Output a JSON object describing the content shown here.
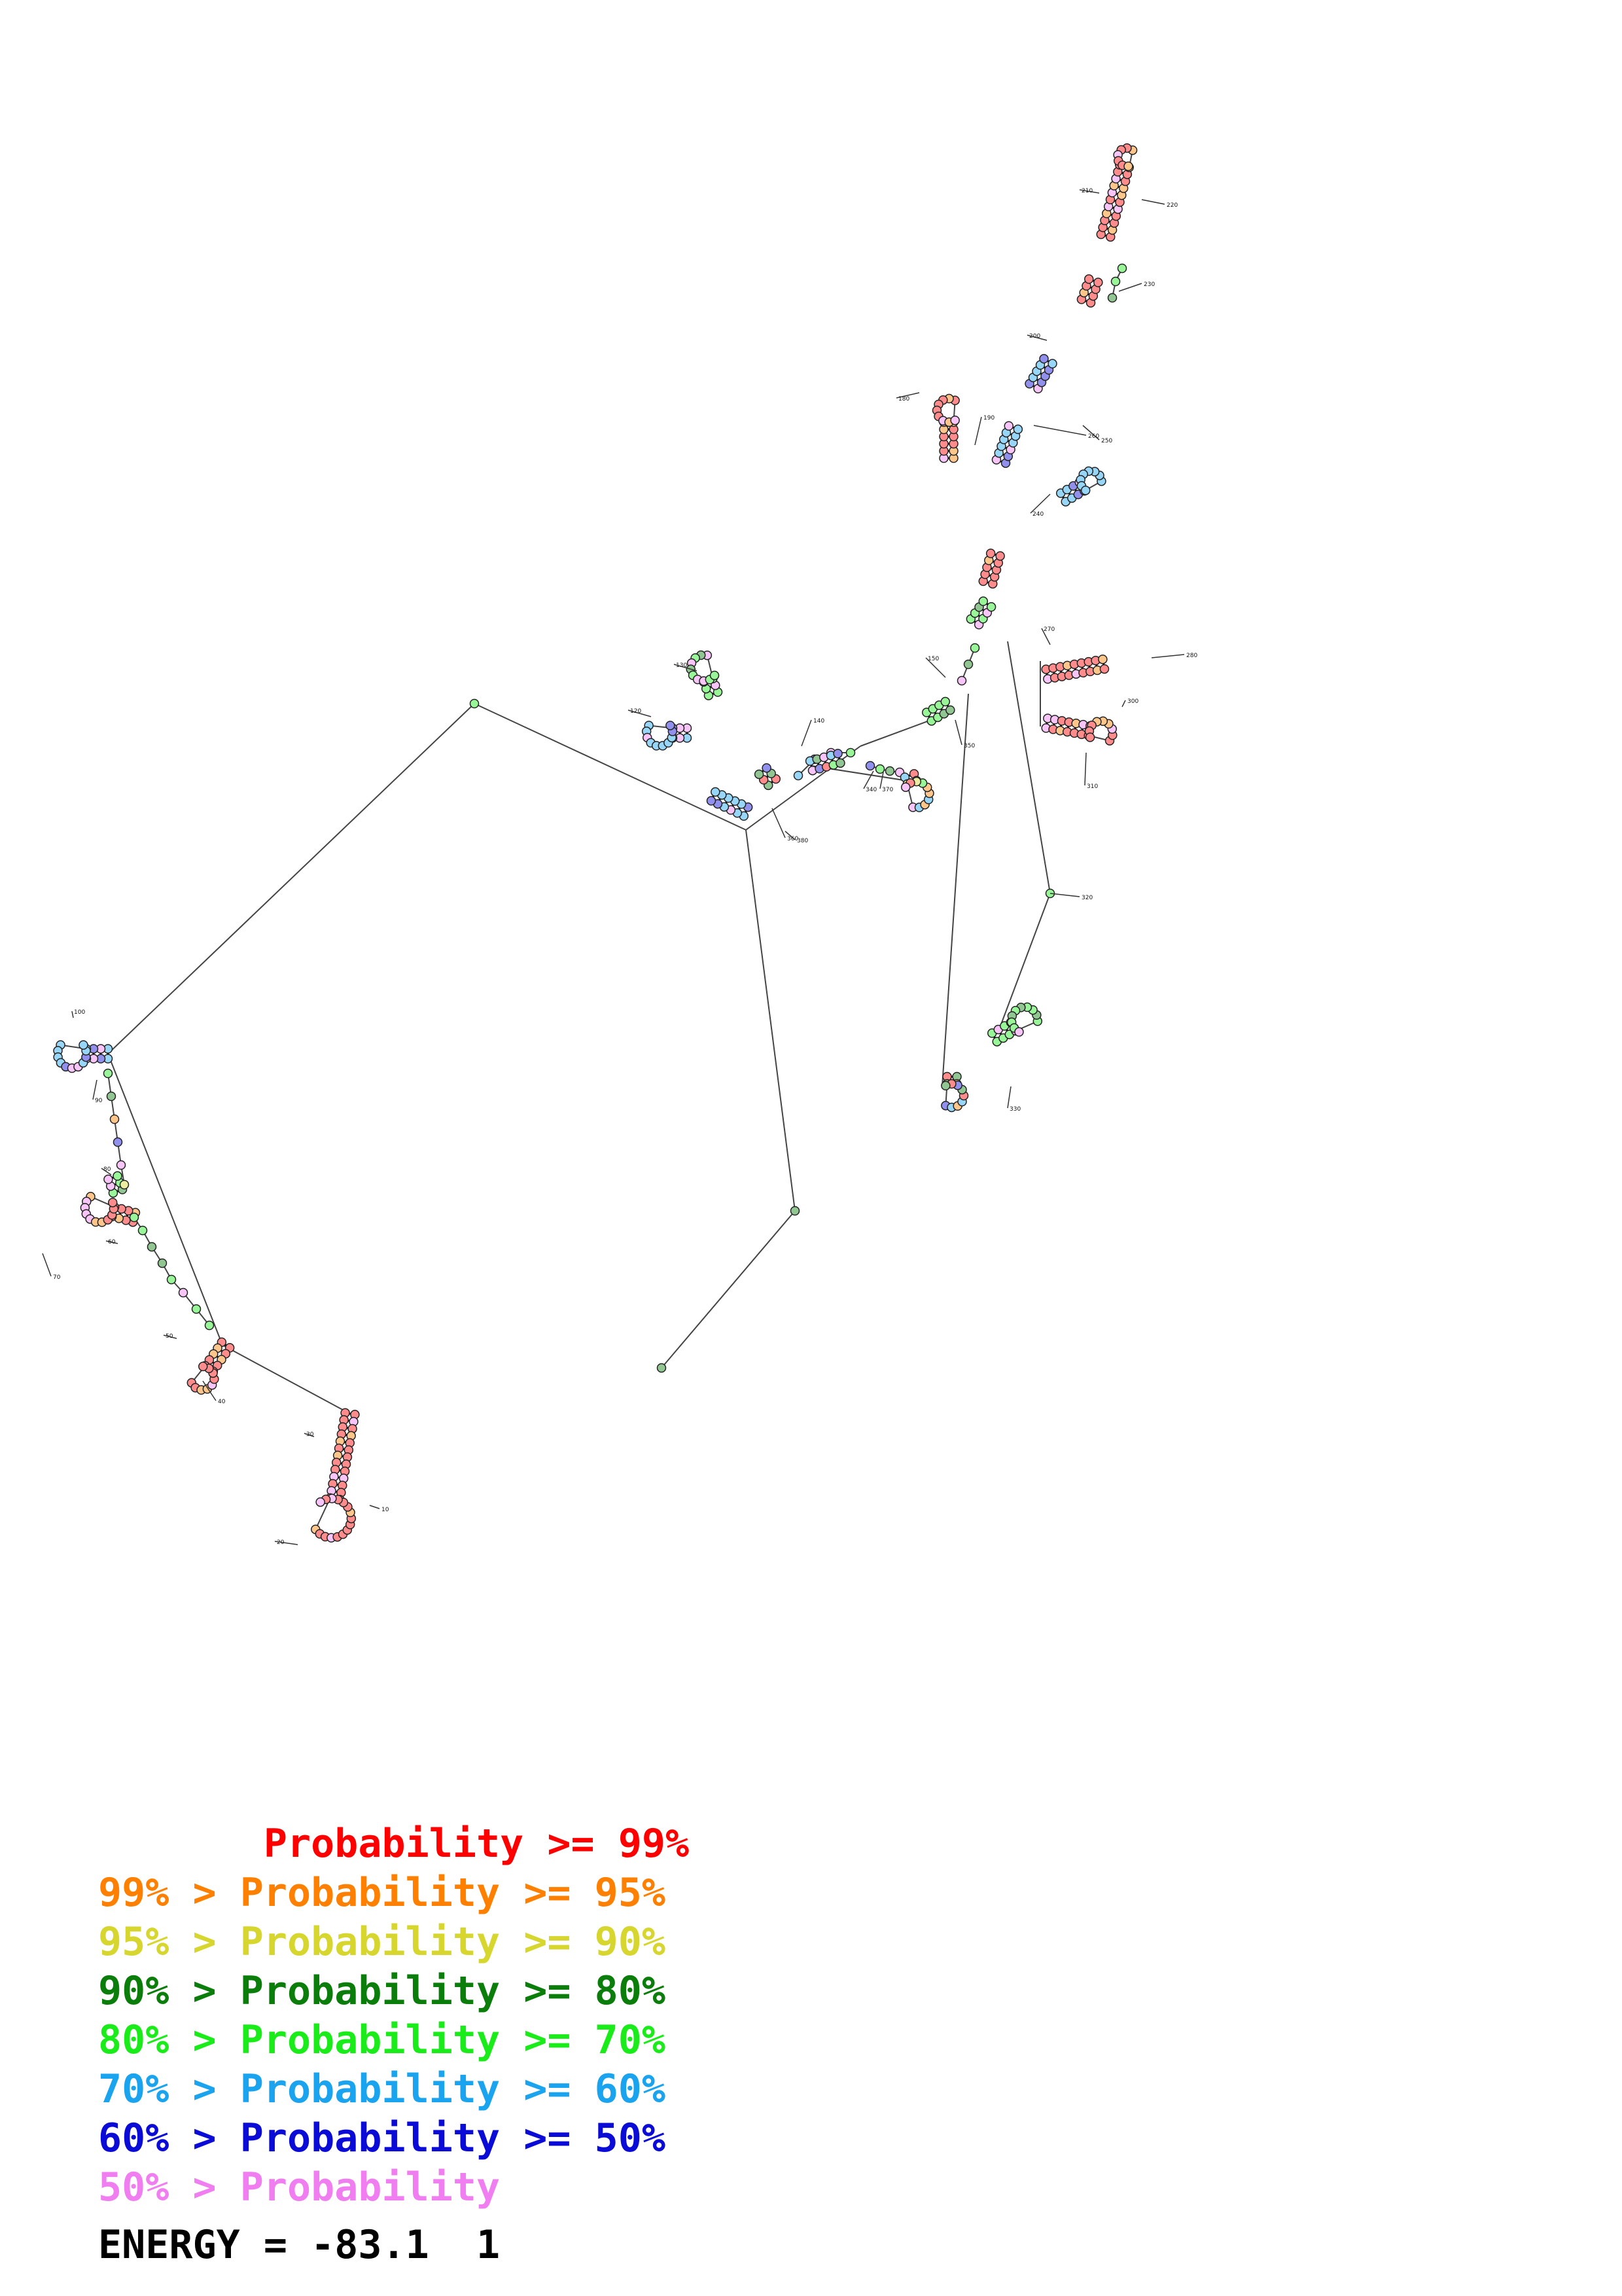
{
  "legend": [
    {
      "color": "#ff0000",
      "text": "       Probability >= 99%"
    },
    {
      "color": "#ff8000",
      "text": "99% > Probability >= 95%"
    },
    {
      "color": "#d6d62e",
      "text": "95% > Probability >= 90%"
    },
    {
      "color": "#0b7d0b",
      "text": "90% > Probability >= 80%"
    },
    {
      "color": "#19ec19",
      "text": "80% > Probability >= 70%"
    },
    {
      "color": "#1aa3ee",
      "text": "70% > Probability >= 60%"
    },
    {
      "color": "#0b0bd8",
      "text": "60% > Probability >= 50%"
    },
    {
      "color": "#f07ef0",
      "text": "50% > Probability"
    }
  ],
  "energy": "ENERGY = -83.1  1",
  "tick_labels": [
    "10",
    "20",
    "30",
    "40",
    "50",
    "60",
    "70",
    "80",
    "90",
    "100",
    "120",
    "130",
    "140",
    "150",
    "180",
    "190",
    "200",
    "210",
    "220",
    "230",
    "240",
    "250",
    "260",
    "270",
    "280",
    "300",
    "310",
    "320",
    "330",
    "340",
    "350",
    "360",
    "370",
    "380"
  ],
  "probability_colors": {
    "p99": "#ff0000",
    "p95": "#ff8000",
    "p90": "#d6d62e",
    "p80": "#0b7d0b",
    "p70": "#19ec19",
    "p60": "#1aa3ee",
    "p50": "#0b0bd8",
    "plow": "#f07ef0"
  }
}
